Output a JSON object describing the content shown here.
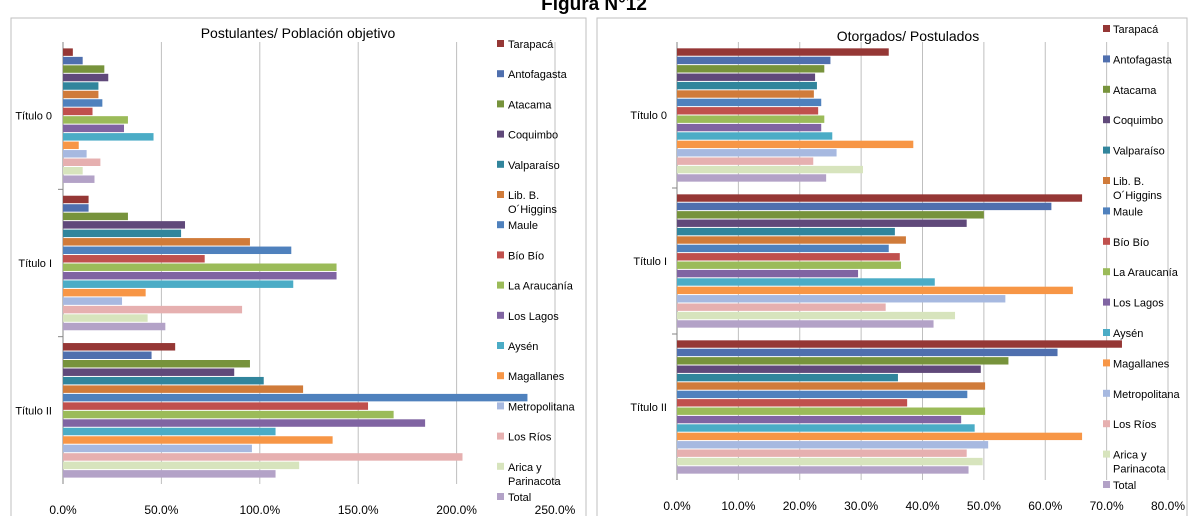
{
  "figure_title": "Figura N°12",
  "series_names": [
    "Tarapacá",
    "Antofagasta",
    "Atacama",
    "Coquimbo",
    "Valparaíso",
    "Lib. B. O´Higgins",
    "Maule",
    "Bío Bío",
    "La Araucanía",
    "Los Lagos",
    "Aysén",
    "Magallanes",
    "Metropolitana",
    "Los Ríos",
    "Arica y Parinacota",
    "Total"
  ],
  "series_colors": [
    "#953735",
    "#4f6fae",
    "#77933c",
    "#60497a",
    "#31859c",
    "#d07b3a",
    "#4f81bd",
    "#c0504d",
    "#9bbb59",
    "#8064a2",
    "#4bacc6",
    "#f79646",
    "#a7b9e0",
    "#e6b0b0",
    "#d7e4bd",
    "#b3a2c7"
  ],
  "chart_data": [
    {
      "type": "bar",
      "orientation": "horizontal",
      "title": "Postulantes/ Población objetivo",
      "categories": [
        "Título 0",
        "Título I",
        "Título II"
      ],
      "xlim": [
        0,
        250
      ],
      "xticks": [
        "0.0%",
        "50.0%",
        "100.0%",
        "150.0%",
        "200.0%",
        "250.0%"
      ],
      "xtick_values": [
        0,
        50,
        100,
        150,
        200,
        250
      ],
      "grid": true,
      "legend_position": "right",
      "series": [
        {
          "name": "Tarapacá",
          "values": [
            5,
            13,
            57
          ]
        },
        {
          "name": "Antofagasta",
          "values": [
            10,
            13,
            45
          ]
        },
        {
          "name": "Atacama",
          "values": [
            21,
            33,
            95
          ]
        },
        {
          "name": "Coquimbo",
          "values": [
            23,
            62,
            87
          ]
        },
        {
          "name": "Valparaíso",
          "values": [
            18,
            60,
            102
          ]
        },
        {
          "name": "Lib. B. O´Higgins",
          "values": [
            18,
            95,
            122
          ]
        },
        {
          "name": "Maule",
          "values": [
            20,
            116,
            236
          ]
        },
        {
          "name": "Bío Bío",
          "values": [
            15,
            72,
            155
          ]
        },
        {
          "name": "La Araucanía",
          "values": [
            33,
            139,
            168
          ]
        },
        {
          "name": "Los Lagos",
          "values": [
            31,
            139,
            184
          ]
        },
        {
          "name": "Aysén",
          "values": [
            46,
            117,
            108
          ]
        },
        {
          "name": "Magallanes",
          "values": [
            8,
            42,
            137
          ]
        },
        {
          "name": "Metropolitana",
          "values": [
            12,
            30,
            96
          ]
        },
        {
          "name": "Los Ríos",
          "values": [
            19,
            91,
            203
          ]
        },
        {
          "name": "Arica y Parinacota",
          "values": [
            10,
            43,
            120
          ]
        },
        {
          "name": "Total",
          "values": [
            16,
            52,
            108
          ]
        }
      ]
    },
    {
      "type": "bar",
      "orientation": "horizontal",
      "title": "Otorgados/ Postulados",
      "categories": [
        "Título 0",
        "Título I",
        "Título II"
      ],
      "xlim": [
        0,
        80
      ],
      "xticks": [
        "0.0%",
        "10.0%",
        "20.0%",
        "30.0%",
        "40.0%",
        "50.0%",
        "60.0%",
        "70.0%",
        "80.0%"
      ],
      "xtick_values": [
        0,
        10,
        20,
        30,
        40,
        50,
        60,
        70,
        80
      ],
      "grid": true,
      "legend_position": "right",
      "series": [
        {
          "name": "Tarapacá",
          "values": [
            34.5,
            66,
            72.5
          ]
        },
        {
          "name": "Antofagasta",
          "values": [
            25,
            61,
            62
          ]
        },
        {
          "name": "Atacama",
          "values": [
            24,
            50,
            54
          ]
        },
        {
          "name": "Coquimbo",
          "values": [
            22.5,
            47.2,
            49.5
          ]
        },
        {
          "name": "Valparaíso",
          "values": [
            22.8,
            35.5,
            36
          ]
        },
        {
          "name": "Lib. B. O´Higgins",
          "values": [
            22.3,
            37.3,
            50.2
          ]
        },
        {
          "name": "Maule",
          "values": [
            23.5,
            34.5,
            47.3
          ]
        },
        {
          "name": "Bío Bío",
          "values": [
            23,
            36.3,
            37.5
          ]
        },
        {
          "name": "La Araucanía",
          "values": [
            24,
            36.5,
            50.2
          ]
        },
        {
          "name": "Los Lagos",
          "values": [
            23.5,
            29.5,
            46.3
          ]
        },
        {
          "name": "Aysén",
          "values": [
            25.3,
            42,
            48.5
          ]
        },
        {
          "name": "Magallanes",
          "values": [
            38.5,
            64.5,
            66
          ]
        },
        {
          "name": "Metropolitana",
          "values": [
            26,
            53.5,
            50.7
          ]
        },
        {
          "name": "Los Ríos",
          "values": [
            22.2,
            34,
            47.2
          ]
        },
        {
          "name": "Arica y Parinacota",
          "values": [
            30.3,
            45.3,
            49.8
          ]
        },
        {
          "name": "Total",
          "values": [
            24.3,
            41.8,
            47.5
          ]
        }
      ]
    }
  ]
}
